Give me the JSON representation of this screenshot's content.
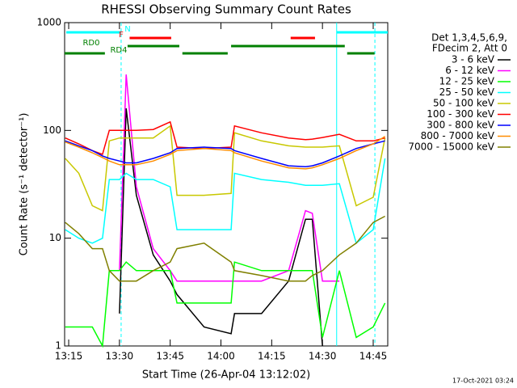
{
  "chart_data": {
    "type": "line",
    "title": "RHESSI Observing Summary Count Rates",
    "xlabel": "Start Time (26-Apr-04 13:12:02)",
    "ylabel": "Count Rate (s⁻¹ detector⁻¹)",
    "footer": "17-Oct-2021 03:24",
    "legend_title": [
      "Det 1,3,4,5,6,9,",
      "FDecim 2, Att 0"
    ],
    "legend": "right",
    "log_y": true,
    "xlim": [
      13.8,
      109.3
    ],
    "xticks": [
      {
        "value": 15,
        "label": "13:15"
      },
      {
        "value": 30,
        "label": "13:30"
      },
      {
        "value": 45,
        "label": "13:45"
      },
      {
        "value": 60,
        "label": "14:00"
      },
      {
        "value": 75,
        "label": "14:15"
      },
      {
        "value": 90,
        "label": "14:30"
      },
      {
        "value": 105,
        "label": "14:45"
      }
    ],
    "ylim": [
      1,
      1000
    ],
    "yticks": [
      1,
      10,
      100,
      1000
    ],
    "x": [
      14,
      18,
      22,
      25,
      27,
      30,
      32,
      35,
      40,
      45,
      47,
      55,
      63,
      64,
      72,
      80,
      85,
      87,
      90,
      95,
      100,
      105,
      108.5
    ],
    "series": [
      {
        "name": "3 - 6 keV",
        "color": "#000000",
        "values": [
          null,
          null,
          null,
          null,
          null,
          2,
          160,
          25,
          7,
          4,
          3,
          1.5,
          1.3,
          2,
          2,
          4,
          15,
          15,
          1,
          null,
          null,
          null,
          null
        ]
      },
      {
        "name": "6 - 12 keV",
        "color": "#ff00ff",
        "values": [
          null,
          null,
          null,
          null,
          null,
          5,
          330,
          30,
          8,
          5,
          4,
          4,
          4,
          4,
          4,
          5,
          18,
          17,
          4,
          4,
          null,
          null,
          null
        ]
      },
      {
        "name": "12 - 25 keV",
        "color": "#00ff00",
        "values": [
          1.5,
          1.5,
          1.5,
          1,
          5,
          5,
          6,
          5,
          5,
          5,
          2.5,
          2.5,
          2.5,
          6,
          5,
          5,
          5,
          5,
          1.2,
          5,
          1.2,
          1.5,
          2.5
        ]
      },
      {
        "name": "25 - 50 keV",
        "color": "#00ffff",
        "values": [
          12,
          10,
          9,
          10,
          35,
          35,
          40,
          35,
          35,
          30,
          12,
          12,
          12,
          40,
          35,
          33,
          31,
          31,
          31,
          32,
          9,
          12,
          55
        ]
      },
      {
        "name": "50 - 100 keV",
        "color": "#c8c800",
        "values": [
          55,
          40,
          20,
          18,
          80,
          85,
          85,
          85,
          85,
          110,
          25,
          25,
          26,
          95,
          80,
          72,
          70,
          70,
          70,
          72,
          20,
          24,
          85
        ]
      },
      {
        "name": "100 - 300 keV",
        "color": "#ff0000",
        "values": [
          85,
          75,
          65,
          60,
          100,
          100,
          100,
          100,
          102,
          120,
          70,
          68,
          70,
          110,
          95,
          85,
          82,
          83,
          86,
          92,
          80,
          80,
          85
        ]
      },
      {
        "name": "300 - 800 keV",
        "color": "#0000ff",
        "values": [
          80,
          72,
          65,
          58,
          55,
          52,
          50,
          50,
          55,
          62,
          68,
          70,
          68,
          65,
          55,
          47,
          46,
          47,
          50,
          58,
          68,
          75,
          80
        ]
      },
      {
        "name": "800 - 7000 keV",
        "color": "#ff8c00",
        "values": [
          78,
          70,
          62,
          56,
          52,
          48,
          48,
          48,
          52,
          60,
          65,
          68,
          65,
          62,
          52,
          45,
          44,
          45,
          48,
          55,
          65,
          75,
          88
        ]
      },
      {
        "name": "7000 - 15000 keV",
        "color": "#808000",
        "values": [
          14,
          11,
          8,
          8,
          5,
          4,
          4,
          4,
          5,
          6,
          8,
          9,
          6,
          5,
          4.5,
          4,
          4,
          4.5,
          5,
          7,
          9,
          14,
          16
        ]
      }
    ],
    "flags": [
      {
        "label": "N",
        "color": "#00ffff",
        "intervals": [
          [
            14.3,
            30.5
          ],
          [
            94.2,
            109.3
          ]
        ]
      },
      {
        "label": "F",
        "color": "#ff0000",
        "intervals": [
          [
            33,
            45.3
          ],
          [
            80.6,
            87.8
          ]
        ]
      },
      {
        "label": "RD0",
        "color": "#008000",
        "intervals": [
          [
            32.4,
            47.7
          ],
          [
            63,
            96.6
          ]
        ]
      },
      {
        "label": "RD4",
        "color": "#008000",
        "intervals": [
          [
            13.8,
            25.7
          ],
          [
            48.6,
            62
          ],
          [
            97.3,
            105.4
          ]
        ]
      }
    ],
    "vlines": [
      {
        "x": 30.5,
        "dashed": true
      },
      {
        "x": 94.2,
        "dashed": false
      },
      {
        "x": 105.5,
        "dashed": true
      }
    ]
  }
}
